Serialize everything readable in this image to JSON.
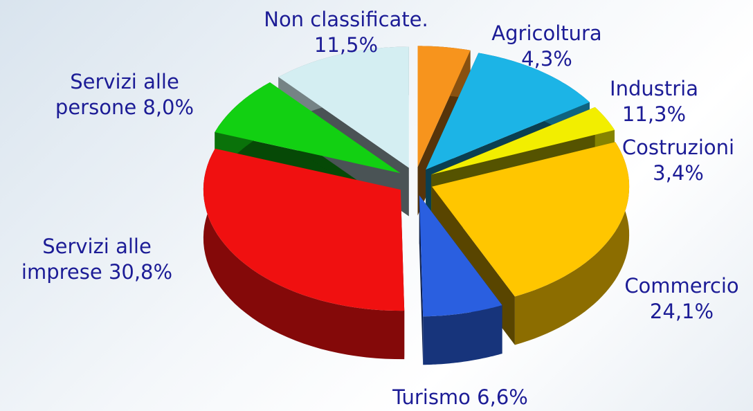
{
  "chart_data": {
    "type": "pie",
    "categories": [
      "Agricoltura",
      "Industria",
      "Costruzioni",
      "Commercio",
      "Turismo",
      "Servizi alle imprese",
      "Servizi alle persone",
      "Non classificate."
    ],
    "values": [
      4.3,
      11.3,
      3.4,
      24.1,
      6.6,
      30.8,
      8.0,
      11.5
    ],
    "value_labels": [
      "4,3%",
      "11,3%",
      "3,4%",
      "24,1%",
      "6,6%",
      "30,8%",
      "8,0%",
      "11,5%"
    ],
    "colors": [
      "#f7941d",
      "#1cb4e6",
      "#f2ee00",
      "#ffc600",
      "#2a5fe0",
      "#f01010",
      "#12d012",
      "#d4eef2"
    ]
  }
}
